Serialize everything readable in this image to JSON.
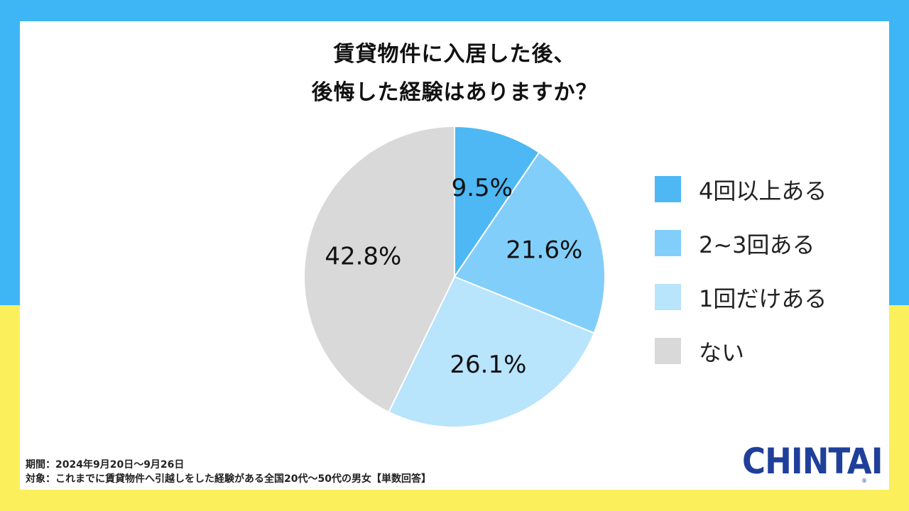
{
  "title": {
    "line1": "賃貸物件に入居した後、",
    "line2": "後悔した経験はありますか？"
  },
  "chart_data": {
    "type": "pie",
    "unit": "%",
    "slices": [
      {
        "label": "4回以上ある",
        "value": 9.5,
        "display": "9.5%",
        "color": "#4DB8F4"
      },
      {
        "label": "2~3回ある",
        "value": 21.6,
        "display": "21.6%",
        "color": "#82CEFA"
      },
      {
        "label": "1回だけある",
        "value": 26.1,
        "display": "26.1%",
        "color": "#B8E4FC"
      },
      {
        "label": "ない",
        "value": 42.8,
        "display": "42.8%",
        "color": "#D9D9D9"
      }
    ],
    "legend_position": "right",
    "start": "top",
    "direction": "clockwise"
  },
  "footnote": {
    "period": "期間：2024年9月20日〜9月26日",
    "target": "対象：これまでに賃貸物件へ引越しをした経験がある全国20代〜50代の男女【単数回答】"
  },
  "logo": {
    "text": "CHINTAI",
    "mark": "®"
  },
  "colors": {
    "background_top": "#3EB6F5",
    "background_bottom": "#FCEF5C",
    "logo": "#1F3F9A"
  }
}
